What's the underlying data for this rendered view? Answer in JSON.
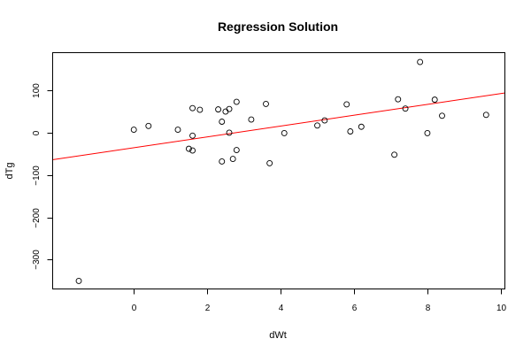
{
  "chart_data": {
    "type": "scatter",
    "title": "Regression Solution",
    "xlabel": "dWt",
    "ylabel": "dTg",
    "xlim": [
      -2.2,
      10.1
    ],
    "ylim": [
      -368,
      188
    ],
    "x_ticks": [
      0,
      2,
      4,
      6,
      8,
      10
    ],
    "y_ticks": [
      -300,
      -200,
      -100,
      0,
      100
    ],
    "x_tick_labels": [
      "0",
      "2",
      "4",
      "6",
      "8",
      "10"
    ],
    "y_tick_labels": [
      "−300",
      "−200",
      "−100",
      "0",
      "100"
    ],
    "grid": false,
    "colors": {
      "points": "#000000",
      "regression_line": "#ff0000"
    },
    "regression": {
      "intercept": -35.5,
      "slope": 12.8
    },
    "points": [
      {
        "x": -1.5,
        "y": -350
      },
      {
        "x": 0.0,
        "y": 7
      },
      {
        "x": 0.4,
        "y": 16
      },
      {
        "x": 1.2,
        "y": 7
      },
      {
        "x": 1.5,
        "y": -38
      },
      {
        "x": 1.6,
        "y": -42
      },
      {
        "x": 1.6,
        "y": -7
      },
      {
        "x": 1.6,
        "y": 58
      },
      {
        "x": 1.8,
        "y": 54
      },
      {
        "x": 2.3,
        "y": 55
      },
      {
        "x": 2.4,
        "y": 26
      },
      {
        "x": 2.4,
        "y": -68
      },
      {
        "x": 2.5,
        "y": 50
      },
      {
        "x": 2.6,
        "y": 56
      },
      {
        "x": 2.6,
        "y": 0
      },
      {
        "x": 2.7,
        "y": -62
      },
      {
        "x": 2.8,
        "y": -41
      },
      {
        "x": 2.8,
        "y": 73
      },
      {
        "x": 3.2,
        "y": 31
      },
      {
        "x": 3.6,
        "y": 68
      },
      {
        "x": 3.7,
        "y": -72
      },
      {
        "x": 4.1,
        "y": -1
      },
      {
        "x": 5.0,
        "y": 17
      },
      {
        "x": 5.2,
        "y": 29
      },
      {
        "x": 5.8,
        "y": 67
      },
      {
        "x": 5.9,
        "y": 3
      },
      {
        "x": 6.2,
        "y": 14
      },
      {
        "x": 7.1,
        "y": -52
      },
      {
        "x": 7.2,
        "y": 79
      },
      {
        "x": 7.4,
        "y": 57
      },
      {
        "x": 7.8,
        "y": 167
      },
      {
        "x": 8.0,
        "y": -1
      },
      {
        "x": 8.2,
        "y": 78
      },
      {
        "x": 8.4,
        "y": 40
      },
      {
        "x": 9.6,
        "y": 42
      }
    ]
  }
}
